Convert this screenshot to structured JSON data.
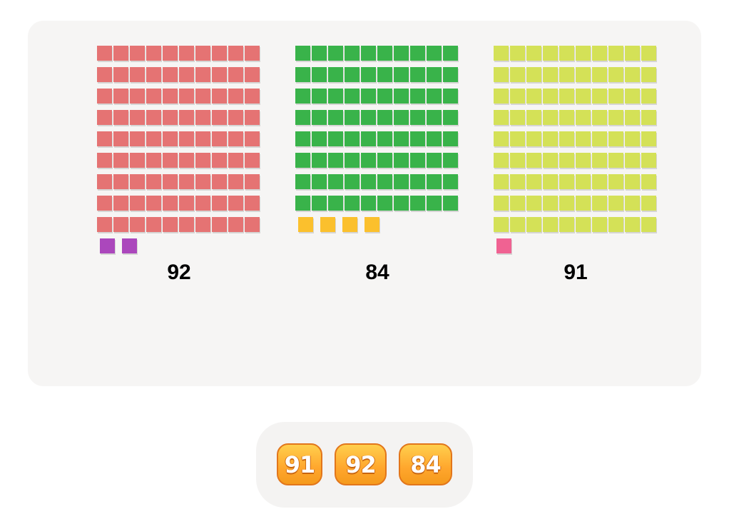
{
  "groups": [
    {
      "label": "92",
      "tens": 9,
      "ones": 2,
      "ten_color": "#e57373",
      "one_color": "#ab47bc"
    },
    {
      "label": "84",
      "tens": 8,
      "ones": 4,
      "ten_color": "#39b34a",
      "one_color": "#fbc02d"
    },
    {
      "label": "91",
      "tens": 9,
      "ones": 1,
      "ten_color": "#d4e157",
      "one_color": "#f06292"
    }
  ],
  "answers": [
    "91",
    "92",
    "84"
  ]
}
